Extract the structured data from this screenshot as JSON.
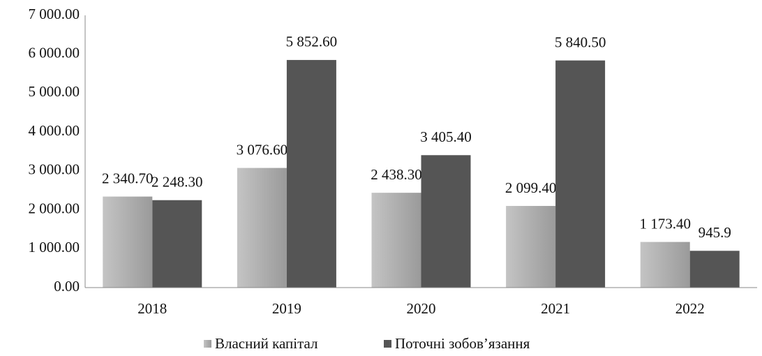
{
  "chart_data": {
    "type": "bar",
    "categories": [
      "2018",
      "2019",
      "2020",
      "2021",
      "2022"
    ],
    "series": [
      {
        "name": "Власний капітал",
        "color": "#a9a9a9",
        "values": [
          2340.7,
          3076.6,
          2438.3,
          2099.4,
          1173.4
        ],
        "value_labels": [
          "2 340.70",
          "3 076.60",
          "2 438.30",
          "2 099.40",
          "1 173.40"
        ]
      },
      {
        "name": "Поточні зобов’язання",
        "color": "#555555",
        "values": [
          2248.3,
          5852.6,
          3405.4,
          5840.5,
          945.9
        ],
        "value_labels": [
          "2 248.30",
          "5 852.60",
          "3 405.40",
          "5 840.50",
          "945.9"
        ]
      }
    ],
    "ylim": [
      0,
      7000
    ],
    "yticks": [
      {
        "value": 0,
        "label": "0.00"
      },
      {
        "value": 1000,
        "label": "1 000.00"
      },
      {
        "value": 2000,
        "label": "2 000.00"
      },
      {
        "value": 3000,
        "label": "3 000.00"
      },
      {
        "value": 4000,
        "label": "4 000.00"
      },
      {
        "value": 5000,
        "label": "5 000.00"
      },
      {
        "value": 6000,
        "label": "6 000.00"
      },
      {
        "value": 7000,
        "label": "7 000.00"
      }
    ],
    "grid": false,
    "legend": "bottom"
  }
}
